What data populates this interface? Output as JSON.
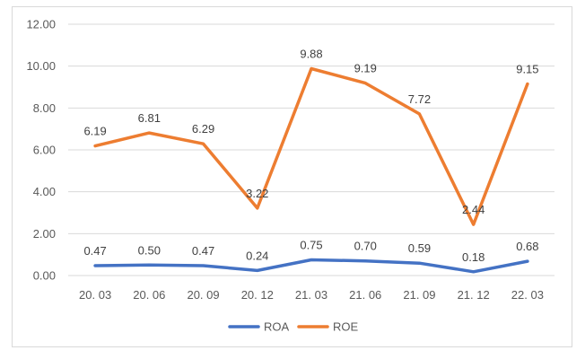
{
  "chart_data": {
    "type": "line",
    "title": "",
    "xlabel": "",
    "ylabel": "",
    "categories": [
      "20. 03",
      "20. 06",
      "20. 09",
      "20. 12",
      "21. 03",
      "21. 06",
      "21. 09",
      "21. 12",
      "22. 03"
    ],
    "ylim": [
      0,
      12
    ],
    "yticks": [
      "0.00",
      "2.00",
      "4.00",
      "6.00",
      "8.00",
      "10.00",
      "12.00"
    ],
    "grid": true,
    "legend_position": "bottom",
    "series": [
      {
        "name": "ROA",
        "color": "#4472c4",
        "values": [
          0.47,
          0.5,
          0.47,
          0.24,
          0.75,
          0.7,
          0.59,
          0.18,
          0.68
        ],
        "labels": [
          "0.47",
          "0.50",
          "0.47",
          "0.24",
          "0.75",
          "0.70",
          "0.59",
          "0.18",
          "0.68"
        ]
      },
      {
        "name": "ROE",
        "color": "#ed7d31",
        "values": [
          6.19,
          6.81,
          6.29,
          3.22,
          9.88,
          9.19,
          7.72,
          2.44,
          9.15
        ],
        "labels": [
          "6.19",
          "6.81",
          "6.29",
          "3.22",
          "9.88",
          "9.19",
          "7.72",
          "2.44",
          "9.15"
        ]
      }
    ]
  }
}
